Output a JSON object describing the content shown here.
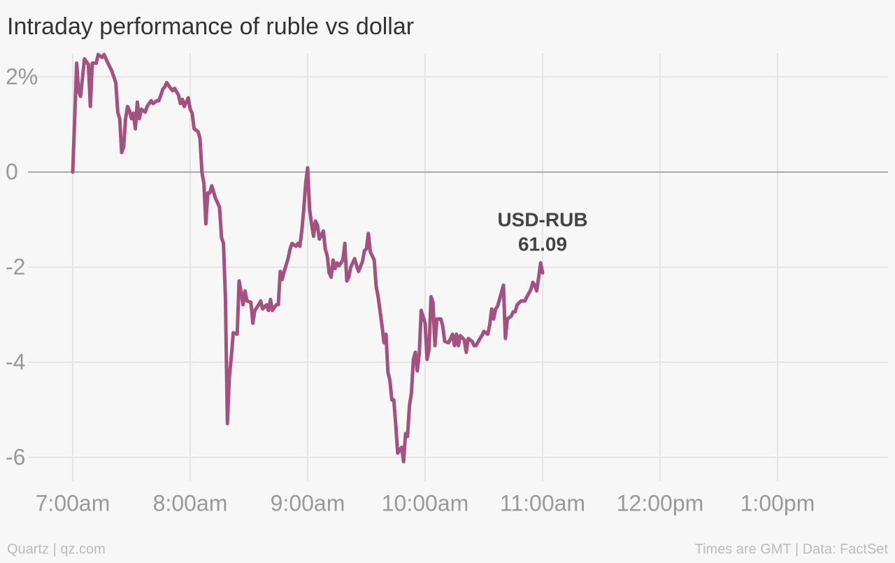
{
  "chart_data": {
    "type": "line",
    "title": "Intraday performance of ruble vs dollar",
    "source_left": "Quartz | qz.com",
    "source_right": "Times are GMT | Data: FactSet",
    "annotation": {
      "label": "USD-RUB",
      "value": 61.09
    },
    "xlim": [
      400,
      836
    ],
    "ylim": [
      -6.5,
      2.5
    ],
    "xticks": [
      {
        "value": 420,
        "label": "7:00am"
      },
      {
        "value": 480,
        "label": "8:00am"
      },
      {
        "value": 540,
        "label": "9:00am"
      },
      {
        "value": 600,
        "label": "10:00am"
      },
      {
        "value": 660,
        "label": "11:00am"
      },
      {
        "value": 720,
        "label": "12:00pm"
      },
      {
        "value": 780,
        "label": "1:00pm"
      }
    ],
    "yticks": [
      {
        "value": 2,
        "label": "2%"
      },
      0,
      -2,
      -4,
      -6
    ],
    "grid": true,
    "x": [
      420,
      421,
      422,
      423,
      424,
      426,
      428,
      429,
      430,
      432,
      433,
      435,
      436,
      438,
      440,
      442,
      443,
      444,
      445,
      446,
      447,
      448,
      449,
      450,
      451,
      452,
      453,
      454,
      455,
      457,
      458,
      460,
      461,
      463,
      464,
      466,
      467,
      468,
      470,
      471,
      472,
      474,
      475,
      476,
      477,
      479,
      480,
      481,
      482,
      484,
      485,
      486,
      487,
      488,
      489,
      490,
      491,
      493,
      495,
      496,
      497,
      498,
      499,
      500,
      501,
      502,
      504,
      505,
      506,
      507,
      508,
      509,
      511,
      512,
      513,
      515,
      516,
      517,
      519,
      520,
      521,
      522,
      524,
      525,
      526,
      527,
      528,
      530,
      531,
      532,
      534,
      535,
      536,
      537,
      538,
      539,
      540,
      541,
      542,
      543,
      544,
      545,
      546,
      548,
      549,
      550,
      551,
      552,
      553,
      554,
      555,
      556,
      558,
      559,
      560,
      561,
      562,
      563,
      564,
      565,
      566,
      568,
      569,
      570,
      571,
      572,
      574,
      575,
      576,
      578,
      579,
      580,
      581,
      582,
      583,
      584,
      585,
      586,
      588,
      589,
      590,
      591,
      592,
      593,
      594,
      595,
      596,
      597,
      598,
      600,
      601,
      602,
      603,
      604,
      605,
      606,
      608,
      609,
      610,
      612,
      613,
      614,
      615,
      616,
      617,
      618,
      620,
      621,
      622,
      624,
      625,
      626,
      628,
      629,
      630,
      632,
      633,
      634,
      635,
      636,
      637,
      638,
      640,
      641,
      642,
      644,
      645,
      646,
      647,
      649,
      651,
      652,
      654,
      655,
      656,
      657,
      658,
      659,
      660
    ],
    "series": [
      {
        "name": "USD-RUB",
        "color": "#a4517f",
        "values": [
          0,
          1.12,
          2.29,
          1.7,
          1.59,
          2.38,
          2.26,
          1.38,
          2.29,
          2.29,
          2.47,
          2.41,
          2.47,
          2.29,
          2.12,
          1.88,
          1.26,
          1.12,
          0.41,
          0.53,
          1.12,
          1.38,
          1.29,
          1.12,
          1.24,
          0.91,
          1.47,
          1.12,
          1.32,
          1.26,
          1.38,
          1.5,
          1.44,
          1.5,
          1.5,
          1.74,
          1.79,
          1.88,
          1.76,
          1.71,
          1.76,
          1.62,
          1.44,
          1.53,
          1.38,
          1.56,
          1.32,
          1.24,
          0.91,
          0.85,
          0.71,
          0,
          -0.24,
          -1.09,
          -0.44,
          -0.44,
          -0.29,
          -0.56,
          -0.74,
          -1.38,
          -1.5,
          -2.65,
          -5.29,
          -4.32,
          -3.88,
          -3.38,
          -3.41,
          -2.29,
          -2.53,
          -2.79,
          -2.5,
          -2.71,
          -2.74,
          -3.18,
          -2.91,
          -2.79,
          -2.71,
          -2.88,
          -2.79,
          -2.91,
          -2.68,
          -2.91,
          -2.79,
          -2.79,
          -2.09,
          -2.26,
          -2.09,
          -1.82,
          -1.62,
          -1.5,
          -1.56,
          -1.5,
          -1.56,
          -1.24,
          -0.79,
          -0.24,
          0.09,
          -0.79,
          -1.09,
          -1.35,
          -1.03,
          -1.12,
          -1.41,
          -1.24,
          -1.62,
          -1.76,
          -2.12,
          -2.21,
          -1.85,
          -2.03,
          -1.91,
          -1.97,
          -1.85,
          -1.5,
          -2.29,
          -2.21,
          -2,
          -1.91,
          -1.82,
          -1.97,
          -2.09,
          -1.88,
          -1.65,
          -1.62,
          -1.29,
          -1.68,
          -1.85,
          -2.41,
          -2.62,
          -3.24,
          -3.59,
          -3.41,
          -4.21,
          -4.38,
          -4.79,
          -4.79,
          -5.32,
          -5.91,
          -5.79,
          -6.09,
          -5.5,
          -5.56,
          -4.91,
          -4.65,
          -3.94,
          -3.79,
          -4.18,
          -3.82,
          -2.91,
          -3.18,
          -3.94,
          -3.74,
          -2.62,
          -2.74,
          -3.65,
          -3.09,
          -3.09,
          -3.24,
          -3.56,
          -3.59,
          -3.5,
          -3.41,
          -3.65,
          -3.41,
          -3.65,
          -3.44,
          -3.53,
          -3.79,
          -3.5,
          -3.56,
          -3.65,
          -3.65,
          -3.5,
          -3.44,
          -3.35,
          -3.41,
          -3.21,
          -2.88,
          -3.09,
          -2.88,
          -2.82,
          -2.68,
          -2.38,
          -3.5,
          -3.09,
          -3.03,
          -2.94,
          -2.94,
          -2.79,
          -2.71,
          -2.71,
          -2.62,
          -2.47,
          -2.32,
          -2.38,
          -2.5,
          -2.21,
          -1.91,
          -2.12
        ]
      }
    ]
  }
}
